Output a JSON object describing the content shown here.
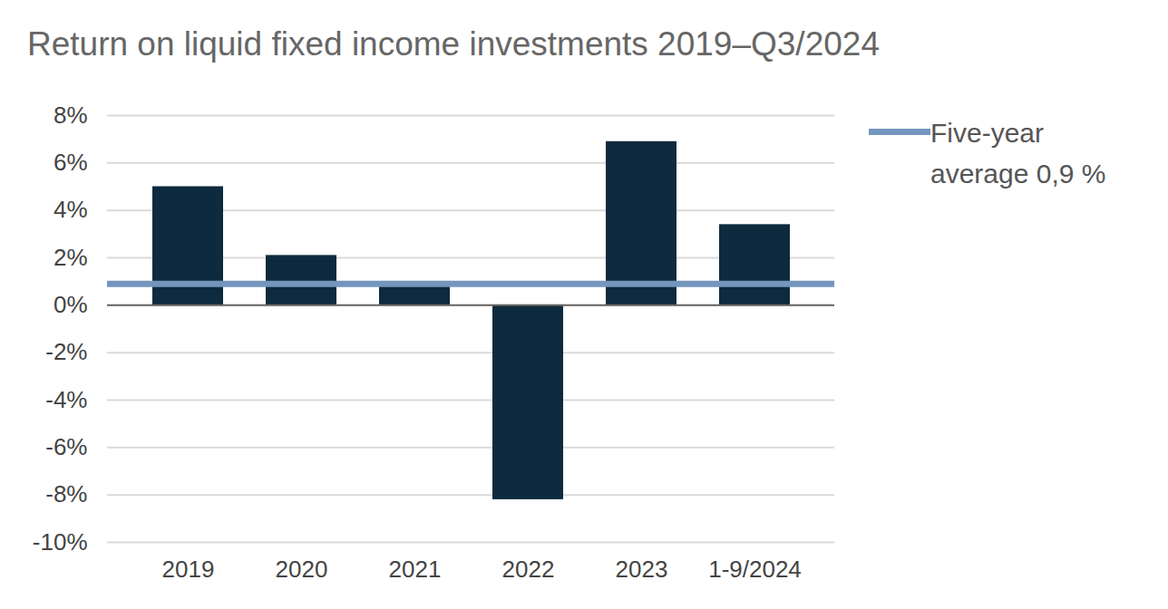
{
  "chart_data": {
    "type": "bar",
    "title": "Return on liquid fixed income investments 2019–Q3/2024",
    "categories": [
      "2019",
      "2020",
      "2021",
      "2022",
      "2023",
      "1-9/2024"
    ],
    "values": [
      5.0,
      2.1,
      0.8,
      -8.2,
      6.9,
      3.4
    ],
    "color": "#0d2a3f",
    "average": {
      "label": "Five-year average 0,9 %",
      "value": 0.9,
      "color": "#7496bd"
    },
    "ylim": [
      -10,
      8
    ],
    "yticks": [
      {
        "value": -10,
        "label": "-10%"
      },
      {
        "value": -8,
        "label": "-8%"
      },
      {
        "value": -6,
        "label": "-6%"
      },
      {
        "value": -4,
        "label": "-4%"
      },
      {
        "value": -2,
        "label": "-2%"
      },
      {
        "value": 0,
        "label": "0%"
      },
      {
        "value": 2,
        "label": "2%"
      },
      {
        "value": 4,
        "label": "4%"
      },
      {
        "value": 6,
        "label": "6%"
      },
      {
        "value": 8,
        "label": "8%"
      }
    ],
    "grid": true,
    "legend": "right"
  }
}
